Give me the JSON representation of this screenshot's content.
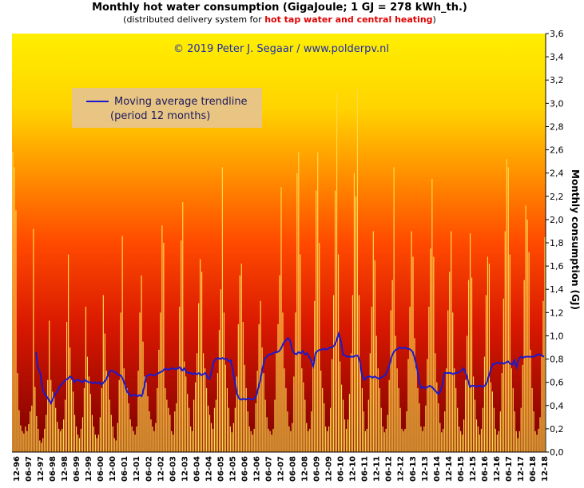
{
  "header": {
    "title": "Monthly  hot water consumption (GigaJoule; 1 GJ = 278 kWh_th.)",
    "subtitle_pre": "(distributed delivery system for ",
    "subtitle_highlight": "hot tap water and central heating",
    "subtitle_post": ")"
  },
  "colors": {
    "gradient_top": "#ffef00",
    "gradient_mid": "#ff4a00",
    "gradient_bottom": "#7a0000",
    "bar_fill": "#ffd84a",
    "trend_line": "#1a1ad0",
    "legend_bg": "#e8c48a"
  },
  "chart_data": {
    "type": "bar",
    "title": "Monthly  hot water consumption (GigaJoule; 1 GJ = 278 kWh_th.)",
    "ylabel": "Monthly consumption (GJ)",
    "ylim": [
      0,
      3.6
    ],
    "y_ticks": [
      "0,0",
      "0,2",
      "0,4",
      "0,6",
      "0,8",
      "1,0",
      "1,2",
      "1,4",
      "1,6",
      "1,8",
      "2,0",
      "2,2",
      "2,4",
      "2,6",
      "2,8",
      "3,0",
      "3,2",
      "3,4",
      "3,6"
    ],
    "x_tick_labels": [
      "12-96",
      "06-97",
      "12-97",
      "06-98",
      "12-98",
      "06-99",
      "12-99",
      "06-00",
      "12-00",
      "06-01",
      "12-01",
      "06-02",
      "12-02",
      "06-03",
      "12-03",
      "06-04",
      "12-04",
      "06-05",
      "12-05",
      "06-06",
      "12-06",
      "06-07",
      "12-07",
      "06-08",
      "12-08",
      "06-09",
      "12-09",
      "06-10",
      "12-10",
      "06-11",
      "12-11",
      "06-12",
      "12-12",
      "06-13",
      "12-13",
      "06-14",
      "12-14",
      "06-15",
      "12-15",
      "06-16",
      "12-16",
      "06-17",
      "12-17",
      "06-18",
      "12-18"
    ],
    "annotation": "© 2019 Peter J. Segaar / www.polderpv.nl",
    "legend": [
      "Moving average trendline",
      "(period 12 months)"
    ],
    "grid": false,
    "legend_placement": "upper-left",
    "series": [
      {
        "name": "Monthly consumption",
        "values": [
          2.58,
          2.45,
          2.08,
          0.68,
          0.36,
          0.23,
          0.18,
          0.16,
          0.22,
          0.18,
          0.24,
          0.35,
          0.4,
          1.92,
          0.56,
          0.31,
          0.2,
          0.1,
          0.08,
          0.12,
          0.2,
          0.32,
          0.62,
          1.13,
          0.62,
          0.52,
          0.48,
          0.38,
          0.26,
          0.2,
          0.18,
          0.2,
          0.28,
          0.45,
          1.12,
          1.7,
          0.9,
          0.62,
          0.52,
          0.32,
          0.22,
          0.15,
          0.12,
          0.2,
          0.3,
          0.55,
          1.25,
          0.82,
          0.65,
          0.5,
          0.32,
          0.22,
          0.15,
          0.12,
          0.15,
          0.3,
          0.55,
          1.35,
          1.02,
          0.7,
          0.65,
          0.45,
          0.32,
          0.22,
          0.12,
          0.1,
          0.25,
          0.62,
          1.2,
          1.86,
          0.72,
          0.58,
          0.55,
          0.42,
          0.28,
          0.22,
          0.18,
          0.15,
          0.22,
          0.7,
          1.2,
          1.52,
          0.95,
          0.65,
          0.6,
          0.48,
          0.35,
          0.28,
          0.22,
          0.18,
          0.25,
          0.55,
          0.88,
          1.2,
          1.95,
          1.8,
          0.55,
          0.45,
          0.38,
          0.32,
          0.18,
          0.15,
          0.35,
          0.42,
          0.72,
          1.25,
          1.82,
          2.15,
          0.78,
          0.65,
          0.5,
          0.38,
          0.22,
          0.18,
          0.45,
          0.6,
          0.85,
          1.28,
          1.66,
          1.55,
          0.85,
          0.72,
          0.55,
          0.4,
          0.32,
          0.25,
          0.2,
          0.38,
          0.45,
          0.68,
          1.05,
          1.4,
          2.45,
          1.2,
          0.75,
          0.55,
          0.38,
          0.22,
          0.17,
          0.25,
          0.38,
          0.65,
          1.1,
          1.52,
          1.62,
          1.12,
          0.75,
          0.55,
          0.35,
          0.22,
          0.18,
          0.15,
          0.2,
          0.42,
          0.7,
          1.1,
          1.3,
          0.9,
          0.68,
          0.45,
          0.3,
          0.2,
          0.18,
          0.15,
          0.2,
          0.45,
          0.85,
          1.1,
          1.52,
          2.28,
          1.2,
          0.72,
          0.55,
          0.35,
          0.22,
          0.18,
          0.25,
          0.65,
          1.2,
          2.4,
          2.58,
          1.7,
          0.72,
          0.6,
          0.45,
          0.25,
          0.18,
          0.2,
          0.35,
          0.78,
          1.3,
          2.25,
          2.58,
          1.8,
          0.7,
          0.55,
          0.42,
          0.22,
          0.18,
          0.22,
          0.38,
          0.8,
          1.35,
          2.25,
          3.08,
          1.7,
          0.78,
          0.58,
          0.45,
          0.28,
          0.2,
          0.28,
          0.5,
          0.85,
          1.35,
          2.4,
          2.2,
          3.12,
          1.35,
          0.75,
          0.55,
          0.35,
          0.18,
          0.2,
          0.45,
          0.85,
          1.25,
          1.9,
          1.65,
          1.0,
          0.72,
          0.55,
          0.38,
          0.22,
          0.17,
          0.2,
          0.32,
          0.62,
          1.22,
          1.48,
          2.45,
          1.0,
          0.72,
          0.55,
          0.38,
          0.2,
          0.18,
          0.2,
          0.35,
          0.8,
          1.25,
          1.9,
          1.68,
          0.98,
          0.72,
          0.55,
          0.42,
          0.22,
          0.18,
          0.22,
          0.4,
          0.8,
          1.25,
          1.75,
          2.35,
          1.68,
          0.85,
          0.6,
          0.42,
          0.25,
          0.17,
          0.2,
          0.35,
          0.72,
          1.22,
          1.55,
          1.9,
          1.2,
          0.72,
          0.55,
          0.38,
          0.22,
          0.18,
          0.15,
          0.28,
          0.62,
          1.0,
          1.48,
          1.88,
          1.5,
          0.65,
          0.45,
          0.28,
          0.22,
          0.15,
          0.2,
          0.38,
          0.82,
          1.35,
          1.68,
          1.62,
          0.6,
          0.52,
          0.38,
          0.2,
          0.15,
          0.18,
          0.35,
          0.68,
          1.32,
          1.9,
          2.52,
          2.45,
          1.7,
          0.72,
          0.55,
          0.35,
          0.18,
          0.12,
          0.18,
          0.38,
          0.75,
          1.48,
          2.12,
          2.0,
          1.72,
          0.88,
          0.55,
          0.35,
          0.18,
          0.15,
          0.2,
          0.3,
          0.82,
          1.3,
          1.85
        ]
      },
      {
        "name": "Moving average trendline",
        "values": [
          0.86,
          0.72,
          0.68,
          0.55,
          0.5,
          0.48,
          0.45,
          0.42,
          0.46,
          0.5,
          0.52,
          0.56,
          0.58,
          0.6,
          0.62,
          0.63,
          0.65,
          0.64,
          0.6,
          0.62,
          0.62,
          0.61,
          0.6,
          0.62,
          0.61,
          0.6,
          0.6,
          0.59,
          0.6,
          0.59,
          0.6,
          0.58,
          0.6,
          0.62,
          0.66,
          0.7,
          0.7,
          0.69,
          0.68,
          0.66,
          0.66,
          0.63,
          0.58,
          0.52,
          0.5,
          0.48,
          0.49,
          0.49,
          0.48,
          0.49,
          0.48,
          0.55,
          0.65,
          0.66,
          0.67,
          0.66,
          0.66,
          0.67,
          0.68,
          0.69,
          0.7,
          0.72,
          0.71,
          0.71,
          0.72,
          0.72,
          0.71,
          0.72,
          0.73,
          0.7,
          0.72,
          0.69,
          0.68,
          0.68,
          0.67,
          0.68,
          0.67,
          0.68,
          0.66,
          0.67,
          0.68,
          0.64,
          0.63,
          0.7,
          0.78,
          0.8,
          0.81,
          0.8,
          0.81,
          0.8,
          0.8,
          0.78,
          0.79,
          0.7,
          0.6,
          0.5,
          0.46,
          0.45,
          0.46,
          0.45,
          0.46,
          0.46,
          0.45,
          0.46,
          0.48,
          0.55,
          0.62,
          0.72,
          0.8,
          0.82,
          0.84,
          0.84,
          0.85,
          0.86,
          0.86,
          0.87,
          0.9,
          0.94,
          0.96,
          0.98,
          0.96,
          0.88,
          0.85,
          0.84,
          0.86,
          0.85,
          0.87,
          0.84,
          0.85,
          0.82,
          0.79,
          0.74,
          0.85,
          0.87,
          0.88,
          0.88,
          0.89,
          0.88,
          0.89,
          0.9,
          0.9,
          0.92,
          0.96,
          1.02,
          0.96,
          0.84,
          0.83,
          0.82,
          0.82,
          0.82,
          0.82,
          0.83,
          0.83,
          0.78,
          0.66,
          0.62,
          0.64,
          0.65,
          0.65,
          0.64,
          0.65,
          0.64,
          0.63,
          0.64,
          0.65,
          0.66,
          0.7,
          0.75,
          0.82,
          0.86,
          0.88,
          0.89,
          0.9,
          0.89,
          0.9,
          0.89,
          0.89,
          0.88,
          0.86,
          0.8,
          0.72,
          0.6,
          0.55,
          0.56,
          0.55,
          0.56,
          0.57,
          0.56,
          0.54,
          0.52,
          0.5,
          0.52,
          0.58,
          0.68,
          0.68,
          0.68,
          0.68,
          0.67,
          0.68,
          0.68,
          0.69,
          0.7,
          0.72,
          0.68,
          0.62,
          0.56,
          0.57,
          0.57,
          0.56,
          0.57,
          0.57,
          0.56,
          0.57,
          0.6,
          0.66,
          0.72,
          0.76,
          0.76,
          0.77,
          0.76,
          0.77,
          0.76,
          0.77,
          0.78,
          0.76,
          0.75,
          0.79,
          0.73,
          0.8,
          0.82,
          0.81,
          0.82,
          0.82,
          0.82,
          0.82,
          0.82,
          0.83,
          0.84,
          0.84,
          0.83,
          0.82
        ]
      }
    ]
  }
}
